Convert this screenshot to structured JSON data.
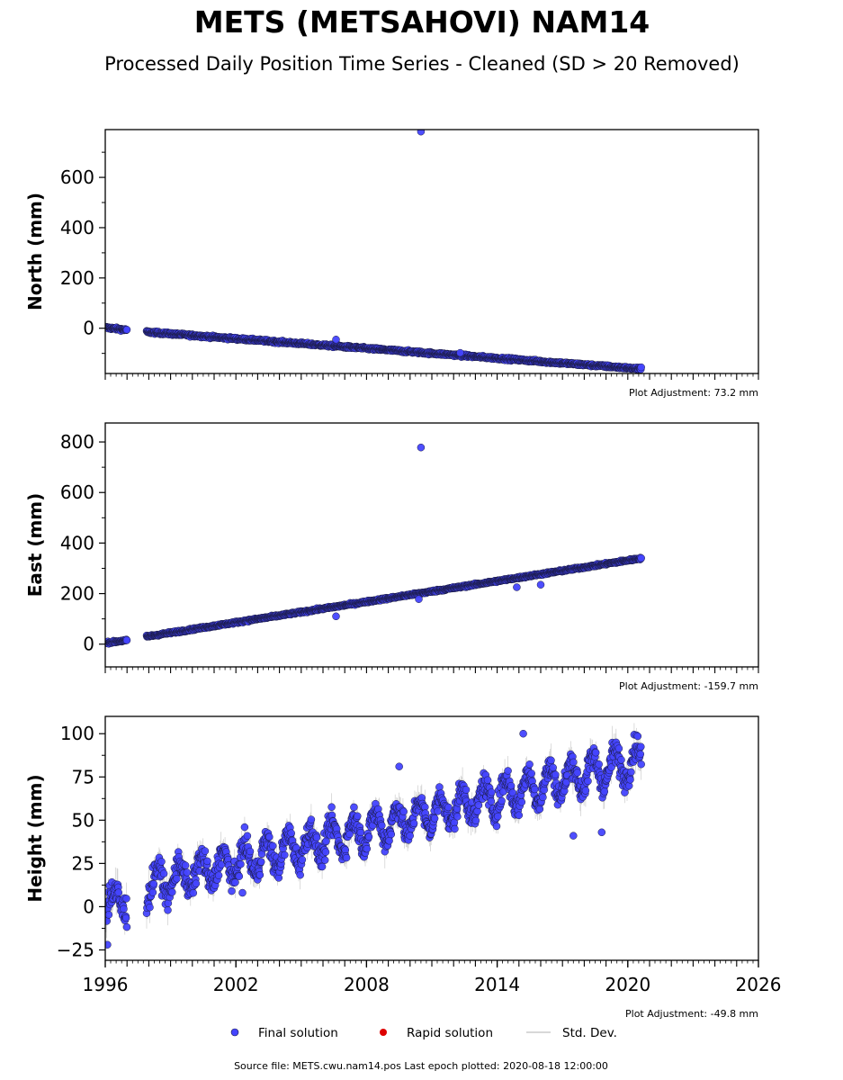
{
  "figure": {
    "title": "METS (METSAHOVI) NAM14",
    "subtitle": "Processed Daily Position Time Series - Cleaned (SD > 20 Removed)",
    "source": "Source file: METS.cwu.nam14.pos  Last epoch plotted: 2020-08-18 12:00:00",
    "legend": {
      "position": "bottom-center",
      "items": [
        {
          "label": "Final solution",
          "color": "#4444ff",
          "kind": "marker"
        },
        {
          "label": "Rapid solution",
          "color": "#dd0000",
          "kind": "marker"
        },
        {
          "label": "Std. Dev.",
          "color": "#cccccc",
          "kind": "line"
        }
      ]
    },
    "colors": {
      "final": "#4444ff",
      "edge": "#1a1a40",
      "stddev": "#b8b8b8"
    }
  },
  "chart_data": [
    {
      "type": "scatter",
      "ylabel": "North (mm)",
      "adjustment": "Plot Adjustment: 73.2 mm",
      "xlim": [
        1996,
        2026
      ],
      "ylim": [
        -180,
        790
      ],
      "yticks": [
        0,
        200,
        400,
        600
      ],
      "yticklabels": [
        "0",
        "200",
        "400",
        "600"
      ],
      "grid": false,
      "segments": [
        {
          "x": [
            1996.0,
            1997.0
          ],
          "y": [
            3,
            -7
          ],
          "noise": 5
        },
        {
          "x": [
            1997.9,
            2020.63
          ],
          "y": [
            -15,
            -162
          ],
          "noise": 5
        }
      ],
      "outliers": [
        {
          "x": 2010.5,
          "y": 782
        },
        {
          "x": 2006.6,
          "y": -45
        },
        {
          "x": 2012.3,
          "y": -98
        }
      ]
    },
    {
      "type": "scatter",
      "ylabel": "East (mm)",
      "adjustment": "Plot Adjustment: -159.7 mm",
      "xlim": [
        1996,
        2026
      ],
      "ylim": [
        -90,
        875
      ],
      "yticks": [
        0,
        200,
        400,
        600,
        800
      ],
      "yticklabels": [
        "0",
        "200",
        "400",
        "600",
        "800"
      ],
      "grid": false,
      "segments": [
        {
          "x": [
            1996.0,
            1997.0
          ],
          "y": [
            5,
            15
          ],
          "noise": 4
        },
        {
          "x": [
            1997.9,
            2020.63
          ],
          "y": [
            30,
            340
          ],
          "noise": 4
        }
      ],
      "outliers": [
        {
          "x": 2010.5,
          "y": 778
        },
        {
          "x": 2006.6,
          "y": 110
        },
        {
          "x": 2014.9,
          "y": 225
        },
        {
          "x": 2016.0,
          "y": 235
        },
        {
          "x": 2010.4,
          "y": 178
        }
      ]
    },
    {
      "type": "scatter",
      "ylabel": "Height (mm)",
      "adjustment": "Plot Adjustment: -49.8 mm",
      "xlim": [
        1996,
        2026
      ],
      "ylim": [
        -31,
        110
      ],
      "yticks": [
        -25,
        0,
        25,
        50,
        75,
        100
      ],
      "yticklabels": [
        "−25",
        "0",
        "25",
        "50",
        "75",
        "100"
      ],
      "xticks": [
        1996,
        2002,
        2008,
        2014,
        2020,
        2026
      ],
      "xticklabels": [
        "1996",
        "2002",
        "2008",
        "2014",
        "2020",
        "2026"
      ],
      "grid": false,
      "segments": [
        {
          "x": [
            1996.0,
            1997.0
          ],
          "y": [
            3,
            3
          ],
          "noise": 10,
          "season": 6
        },
        {
          "x": [
            1997.9,
            2020.63
          ],
          "y": [
            12,
            85
          ],
          "noise": 7,
          "season": 9
        }
      ],
      "outliers": [
        {
          "x": 2015.2,
          "y": 100
        },
        {
          "x": 2009.5,
          "y": 81
        },
        {
          "x": 2017.5,
          "y": 41
        },
        {
          "x": 2018.8,
          "y": 43
        },
        {
          "x": 2002.3,
          "y": 8
        },
        {
          "x": 1996.1,
          "y": -22
        }
      ]
    }
  ]
}
